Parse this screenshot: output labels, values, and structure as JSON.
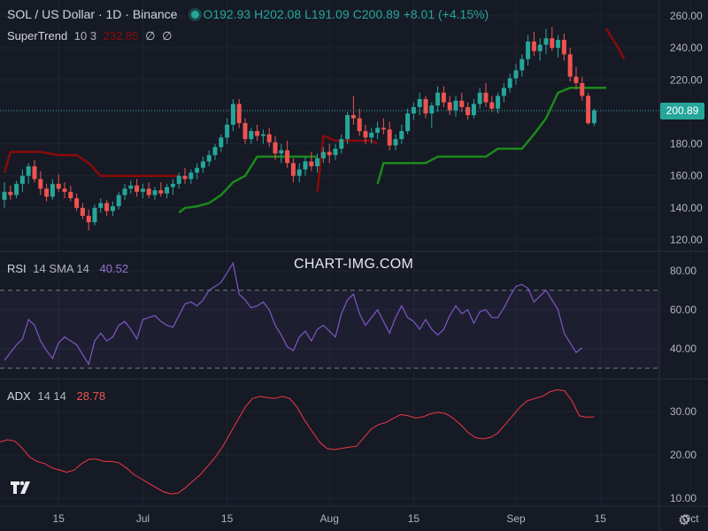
{
  "header": {
    "symbol": "SOL / US Dollar · 1D · Binance",
    "o_label": "O",
    "o_val": "192.93",
    "h_label": "H",
    "h_val": "202.08",
    "l_label": "L",
    "l_val": "191.09",
    "c_label": "C",
    "c_val": "200.89",
    "change": "+8.01 (+4.15%)"
  },
  "indicators": {
    "supertrend": {
      "name": "SuperTrend",
      "params": "10 3",
      "value": "232.85",
      "sym1": "∅",
      "sym2": "∅"
    },
    "rsi": {
      "name": "RSI",
      "params": "14 SMA 14",
      "value": "40.52"
    },
    "adx": {
      "name": "ADX",
      "params": "14 14",
      "value": "28.78"
    }
  },
  "watermark": "CHART-IMG.COM",
  "last_price_label": "200.89",
  "colors": {
    "background": "#161a25",
    "up": "#26a69a",
    "down": "#ef5350",
    "supertrend_up": "#1b8a1b",
    "supertrend_down": "#8b0a0a",
    "rsi_line": "#7e57c2",
    "rsi_band": "#7e57c2",
    "adx_line": "#f23645"
  },
  "icons": {
    "status": "live-dot-icon",
    "logo": "tradingview-logo-icon",
    "settings": "gear-icon"
  },
  "chart_data": [
    {
      "type": "candlestick",
      "title": "SOL / US Dollar · 1D · Binance",
      "ylim": [
        115,
        265
      ],
      "y_ticks": [
        "120.00",
        "140.00",
        "160.00",
        "180.00",
        "200.00",
        "220.00",
        "240.00",
        "260.00"
      ],
      "x_ticks": [
        {
          "label": "15",
          "index": 9
        },
        {
          "label": "Jul",
          "index": 23
        },
        {
          "label": "15",
          "index": 37
        },
        {
          "label": "Aug",
          "index": 54
        },
        {
          "label": "15",
          "index": 68
        },
        {
          "label": "Sep",
          "index": 85
        },
        {
          "label": "15",
          "index": 99
        },
        {
          "label": "Oct",
          "index": 114
        }
      ],
      "ohlc": [
        [
          145,
          156,
          140,
          150
        ],
        [
          150,
          154,
          145,
          148
        ],
        [
          148,
          157,
          146,
          155
        ],
        [
          155,
          164,
          150,
          160
        ],
        [
          160,
          168,
          155,
          166
        ],
        [
          166,
          170,
          156,
          158
        ],
        [
          158,
          163,
          148,
          152
        ],
        [
          152,
          155,
          144,
          147
        ],
        [
          147,
          158,
          145,
          155
        ],
        [
          155,
          161,
          150,
          152
        ],
        [
          152,
          156,
          146,
          150
        ],
        [
          150,
          154,
          144,
          146
        ],
        [
          146,
          149,
          138,
          140
        ],
        [
          140,
          143,
          133,
          135
        ],
        [
          135,
          139,
          126,
          131
        ],
        [
          131,
          142,
          129,
          140
        ],
        [
          140,
          146,
          137,
          143
        ],
        [
          143,
          145,
          135,
          138
        ],
        [
          138,
          144,
          135,
          141
        ],
        [
          141,
          150,
          139,
          148
        ],
        [
          148,
          155,
          145,
          152
        ],
        [
          152,
          157,
          149,
          154
        ],
        [
          154,
          158,
          147,
          150
        ],
        [
          150,
          155,
          146,
          152
        ],
        [
          152,
          156,
          146,
          148
        ],
        [
          148,
          153,
          145,
          151
        ],
        [
          151,
          156,
          147,
          149
        ],
        [
          149,
          155,
          146,
          153
        ],
        [
          153,
          158,
          148,
          155
        ],
        [
          155,
          162,
          152,
          160
        ],
        [
          160,
          165,
          155,
          158
        ],
        [
          158,
          164,
          155,
          162
        ],
        [
          162,
          168,
          158,
          165
        ],
        [
          165,
          172,
          162,
          169
        ],
        [
          169,
          176,
          166,
          173
        ],
        [
          173,
          180,
          170,
          178
        ],
        [
          178,
          186,
          175,
          184
        ],
        [
          184,
          196,
          180,
          192
        ],
        [
          192,
          208,
          188,
          205
        ],
        [
          205,
          208,
          190,
          193
        ],
        [
          193,
          196,
          180,
          183
        ],
        [
          183,
          190,
          180,
          188
        ],
        [
          188,
          192,
          182,
          185
        ],
        [
          185,
          189,
          180,
          186
        ],
        [
          186,
          190,
          178,
          181
        ],
        [
          181,
          185,
          170,
          174
        ],
        [
          174,
          180,
          168,
          176
        ],
        [
          176,
          182,
          165,
          168
        ],
        [
          168,
          171,
          156,
          160
        ],
        [
          160,
          168,
          156,
          164
        ],
        [
          164,
          172,
          160,
          169
        ],
        [
          169,
          175,
          163,
          166
        ],
        [
          166,
          174,
          162,
          171
        ],
        [
          171,
          178,
          168,
          175
        ],
        [
          175,
          180,
          168,
          173
        ],
        [
          173,
          180,
          170,
          177
        ],
        [
          177,
          186,
          174,
          183
        ],
        [
          183,
          200,
          180,
          198
        ],
        [
          198,
          210,
          192,
          196
        ],
        [
          196,
          202,
          185,
          188
        ],
        [
          188,
          192,
          180,
          184
        ],
        [
          184,
          190,
          180,
          187
        ],
        [
          187,
          194,
          183,
          190
        ],
        [
          190,
          196,
          186,
          189
        ],
        [
          189,
          194,
          176,
          179
        ],
        [
          179,
          186,
          176,
          183
        ],
        [
          183,
          192,
          180,
          188
        ],
        [
          188,
          202,
          186,
          199
        ],
        [
          199,
          206,
          195,
          203
        ],
        [
          203,
          212,
          198,
          208
        ],
        [
          208,
          210,
          196,
          199
        ],
        [
          199,
          206,
          190,
          204
        ],
        [
          204,
          216,
          200,
          212
        ],
        [
          212,
          216,
          203,
          206
        ],
        [
          206,
          210,
          198,
          201
        ],
        [
          201,
          210,
          197,
          207
        ],
        [
          207,
          212,
          200,
          203
        ],
        [
          203,
          206,
          195,
          198
        ],
        [
          198,
          208,
          196,
          205
        ],
        [
          205,
          215,
          202,
          212
        ],
        [
          212,
          218,
          203,
          206
        ],
        [
          206,
          210,
          200,
          202
        ],
        [
          202,
          212,
          199,
          210
        ],
        [
          210,
          218,
          206,
          215
        ],
        [
          215,
          224,
          212,
          221
        ],
        [
          221,
          230,
          217,
          226
        ],
        [
          226,
          236,
          222,
          233
        ],
        [
          233,
          248,
          229,
          244
        ],
        [
          244,
          250,
          235,
          238
        ],
        [
          238,
          246,
          232,
          242
        ],
        [
          242,
          252,
          236,
          246
        ],
        [
          246,
          253,
          238,
          240
        ],
        [
          240,
          248,
          234,
          245
        ],
        [
          245,
          249,
          232,
          236
        ],
        [
          236,
          240,
          219,
          222
        ],
        [
          222,
          228,
          214,
          218
        ],
        [
          218,
          222,
          207,
          210
        ],
        [
          210,
          212,
          192,
          193
        ],
        [
          192.93,
          202.08,
          191.09,
          200.89
        ]
      ],
      "supertrend": [
        {
          "dir": "down",
          "values": [
            [
              0,
              162
            ],
            [
              1,
              175
            ],
            [
              6,
              175
            ],
            [
              9,
              173
            ],
            [
              12,
              173
            ],
            [
              14,
              168
            ],
            [
              16,
              160
            ],
            [
              28,
              160
            ],
            [
              29,
              160
            ]
          ]
        },
        {
          "dir": "up",
          "values": [
            [
              29,
              137
            ],
            [
              30,
              140
            ],
            [
              32,
              141
            ],
            [
              34,
              143
            ],
            [
              36,
              148
            ],
            [
              38,
              156
            ],
            [
              40,
              160
            ],
            [
              42,
              172
            ],
            [
              52,
              172
            ]
          ]
        },
        {
          "dir": "down",
          "values": [
            [
              52,
              150
            ],
            [
              53,
              185
            ],
            [
              55,
              182
            ],
            [
              61,
              182
            ],
            [
              62,
              180
            ]
          ]
        },
        {
          "dir": "up",
          "values": [
            [
              62,
              155
            ],
            [
              63,
              168
            ],
            [
              70,
              168
            ],
            [
              72,
              172
            ],
            [
              80,
              172
            ],
            [
              82,
              177
            ],
            [
              86,
              177
            ],
            [
              88,
              186
            ],
            [
              90,
              196
            ],
            [
              92,
              212
            ],
            [
              94,
              215
            ],
            [
              99,
              215
            ],
            [
              100,
              215
            ]
          ]
        },
        {
          "dir": "down",
          "values": [
            [
              100,
              252
            ],
            [
              102,
              240
            ],
            [
              103,
              233
            ]
          ]
        }
      ],
      "last_price": 200.89
    },
    {
      "type": "line",
      "title": "RSI 14 SMA 14",
      "ylim": [
        25,
        90
      ],
      "y_ticks": [
        "40.00",
        "60.00",
        "80.00"
      ],
      "bands": [
        30,
        70
      ],
      "values": [
        34,
        38,
        42,
        45,
        55,
        52,
        44,
        39,
        35,
        43,
        46,
        44,
        42,
        37,
        32,
        44,
        48,
        44,
        46,
        52,
        54,
        50,
        45,
        55,
        56,
        57,
        54,
        52,
        51,
        57,
        63,
        64,
        62,
        65,
        70,
        72,
        74,
        79,
        84,
        68,
        65,
        61,
        62,
        64,
        60,
        52,
        47,
        41,
        39,
        46,
        49,
        44,
        50,
        52,
        49,
        46,
        58,
        65,
        68,
        58,
        52,
        56,
        60,
        54,
        48,
        56,
        62,
        56,
        54,
        50,
        55,
        50,
        47,
        50,
        57,
        62,
        58,
        60,
        53,
        59,
        60,
        56,
        56,
        61,
        67,
        72,
        73,
        71,
        64,
        67,
        70,
        65,
        60,
        48,
        43,
        38,
        40.52
      ]
    },
    {
      "type": "line",
      "title": "ADX 14 14",
      "ylim": [
        8,
        38
      ],
      "y_ticks": [
        "10.00",
        "20.00",
        "30.00"
      ],
      "values": [
        23,
        23.5,
        23.2,
        21.5,
        19.5,
        18.5,
        18,
        17,
        16.5,
        16,
        16.5,
        18,
        19,
        19,
        18.5,
        18.5,
        18.2,
        17,
        15.5,
        14.5,
        13.5,
        12.5,
        11.5,
        11,
        11.2,
        12.5,
        14,
        15.5,
        17.5,
        19.5,
        22,
        25,
        28,
        31,
        33,
        33.5,
        33.2,
        33,
        33.5,
        33,
        31,
        28,
        25.5,
        23,
        21.5,
        21.2,
        21.5,
        21.8,
        22,
        24,
        26,
        27,
        27.5,
        28.5,
        29.3,
        29,
        28.5,
        28.8,
        29.5,
        29.8,
        29.5,
        28.5,
        27,
        25.2,
        24,
        23.7,
        24,
        25,
        27,
        29,
        31,
        32.5,
        33,
        33.5,
        34.5,
        35,
        34.8,
        32.5,
        29,
        28.7,
        28.78
      ]
    }
  ]
}
